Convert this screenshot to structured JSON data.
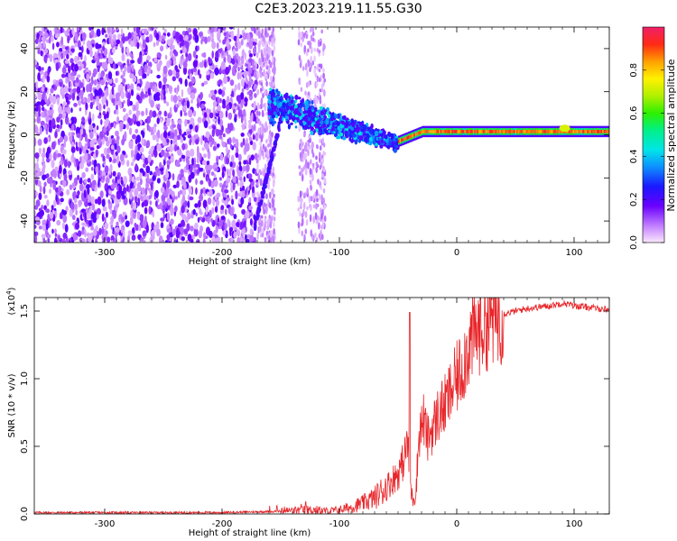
{
  "title": "C2E3.2023.219.11.55.G30",
  "colorbar": {
    "label": "Normalized spectral amplitude",
    "ticks": [
      0.0,
      0.2,
      0.4,
      0.6,
      0.8
    ],
    "range": [
      0.0,
      1.0
    ],
    "colormap": "rainbow (magenta-white to red)"
  },
  "chart_data": [
    {
      "type": "heatmap",
      "name": "spectrogram",
      "xlabel": "Height of straight line (km)",
      "ylabel": "Frequency (Hz)",
      "xlim": [
        -360,
        130
      ],
      "ylim": [
        -50,
        50
      ],
      "xticks": [
        -300,
        -200,
        -100,
        0,
        100
      ],
      "yticks": [
        -40,
        -20,
        0,
        20,
        40
      ],
      "zrange": [
        0.0,
        1.0
      ],
      "features": [
        {
          "x": [
            -360,
            -170
          ],
          "description_level": "noise",
          "amplitude_max": 0.15
        },
        {
          "x": [
            -160,
            -60
          ],
          "frequency_center": [
            12,
            -5
          ],
          "amplitude_max": 0.45
        },
        {
          "x": [
            -50,
            130
          ],
          "frequency_center": 1.5,
          "amplitude_max": 1.0
        }
      ]
    },
    {
      "type": "line",
      "name": "snr",
      "xlabel": "Height of straight line (km)",
      "ylabel": "SNR (10 * v/v)",
      "yscale_label": "(x10^4)",
      "xlim": [
        -360,
        130
      ],
      "ylim": [
        0.0,
        1.6
      ],
      "xticks": [
        -300,
        -200,
        -100,
        0,
        100
      ],
      "yticks": [
        0.0,
        0.5,
        1.0,
        1.5
      ],
      "color": "#e8262a",
      "x": [
        -360,
        -300,
        -250,
        -200,
        -150,
        -130,
        -120,
        -110,
        -100,
        -90,
        -80,
        -70,
        -60,
        -55,
        -50,
        -45,
        -42,
        -40,
        -38,
        -35,
        -32,
        -28,
        -25,
        -20,
        -15,
        -10,
        -5,
        0,
        5,
        10,
        15,
        20,
        25,
        30,
        40,
        50,
        60,
        70,
        80,
        90,
        95,
        100,
        110,
        120,
        130
      ],
      "y": [
        0.01,
        0.01,
        0.01,
        0.01,
        0.02,
        0.03,
        0.03,
        0.02,
        0.03,
        0.05,
        0.08,
        0.12,
        0.2,
        0.25,
        0.3,
        0.4,
        0.55,
        0.25,
        0.12,
        0.15,
        0.6,
        0.7,
        0.55,
        0.65,
        0.75,
        0.8,
        0.9,
        1.0,
        1.1,
        1.25,
        1.32,
        1.38,
        1.42,
        1.45,
        1.48,
        1.5,
        1.52,
        1.53,
        1.54,
        1.56,
        1.55,
        1.54,
        1.53,
        1.52,
        1.51
      ],
      "spike": {
        "x": -40,
        "y": 1.49
      }
    }
  ]
}
